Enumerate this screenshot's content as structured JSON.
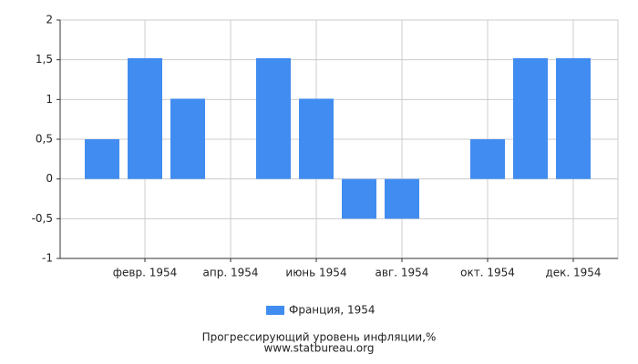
{
  "chart_data": {
    "type": "bar",
    "categories": [
      null,
      "февр. 1954",
      null,
      "апр. 1954",
      null,
      "июнь 1954",
      null,
      "авг. 1954",
      null,
      "окт. 1954",
      null,
      "дек. 1954"
    ],
    "series": [
      {
        "name": "Франция, 1954",
        "color": "#418cf0",
        "values": [
          0.5,
          1.52,
          1.01,
          0,
          1.52,
          1.01,
          -0.5,
          -0.5,
          0,
          0.5,
          1.52,
          1.52
        ]
      }
    ],
    "ylim": [
      -1,
      2
    ],
    "yticks": [
      -1,
      {
        "value": -0.5,
        "label": "-0,5"
      },
      0,
      {
        "value": 0.5,
        "label": "0,5"
      },
      1,
      {
        "value": 1.5,
        "label": "1,5"
      },
      2
    ],
    "grid": true,
    "footer": [
      "Прогрессирующий уровень инфляции,%",
      "www.statbureau.org"
    ]
  }
}
